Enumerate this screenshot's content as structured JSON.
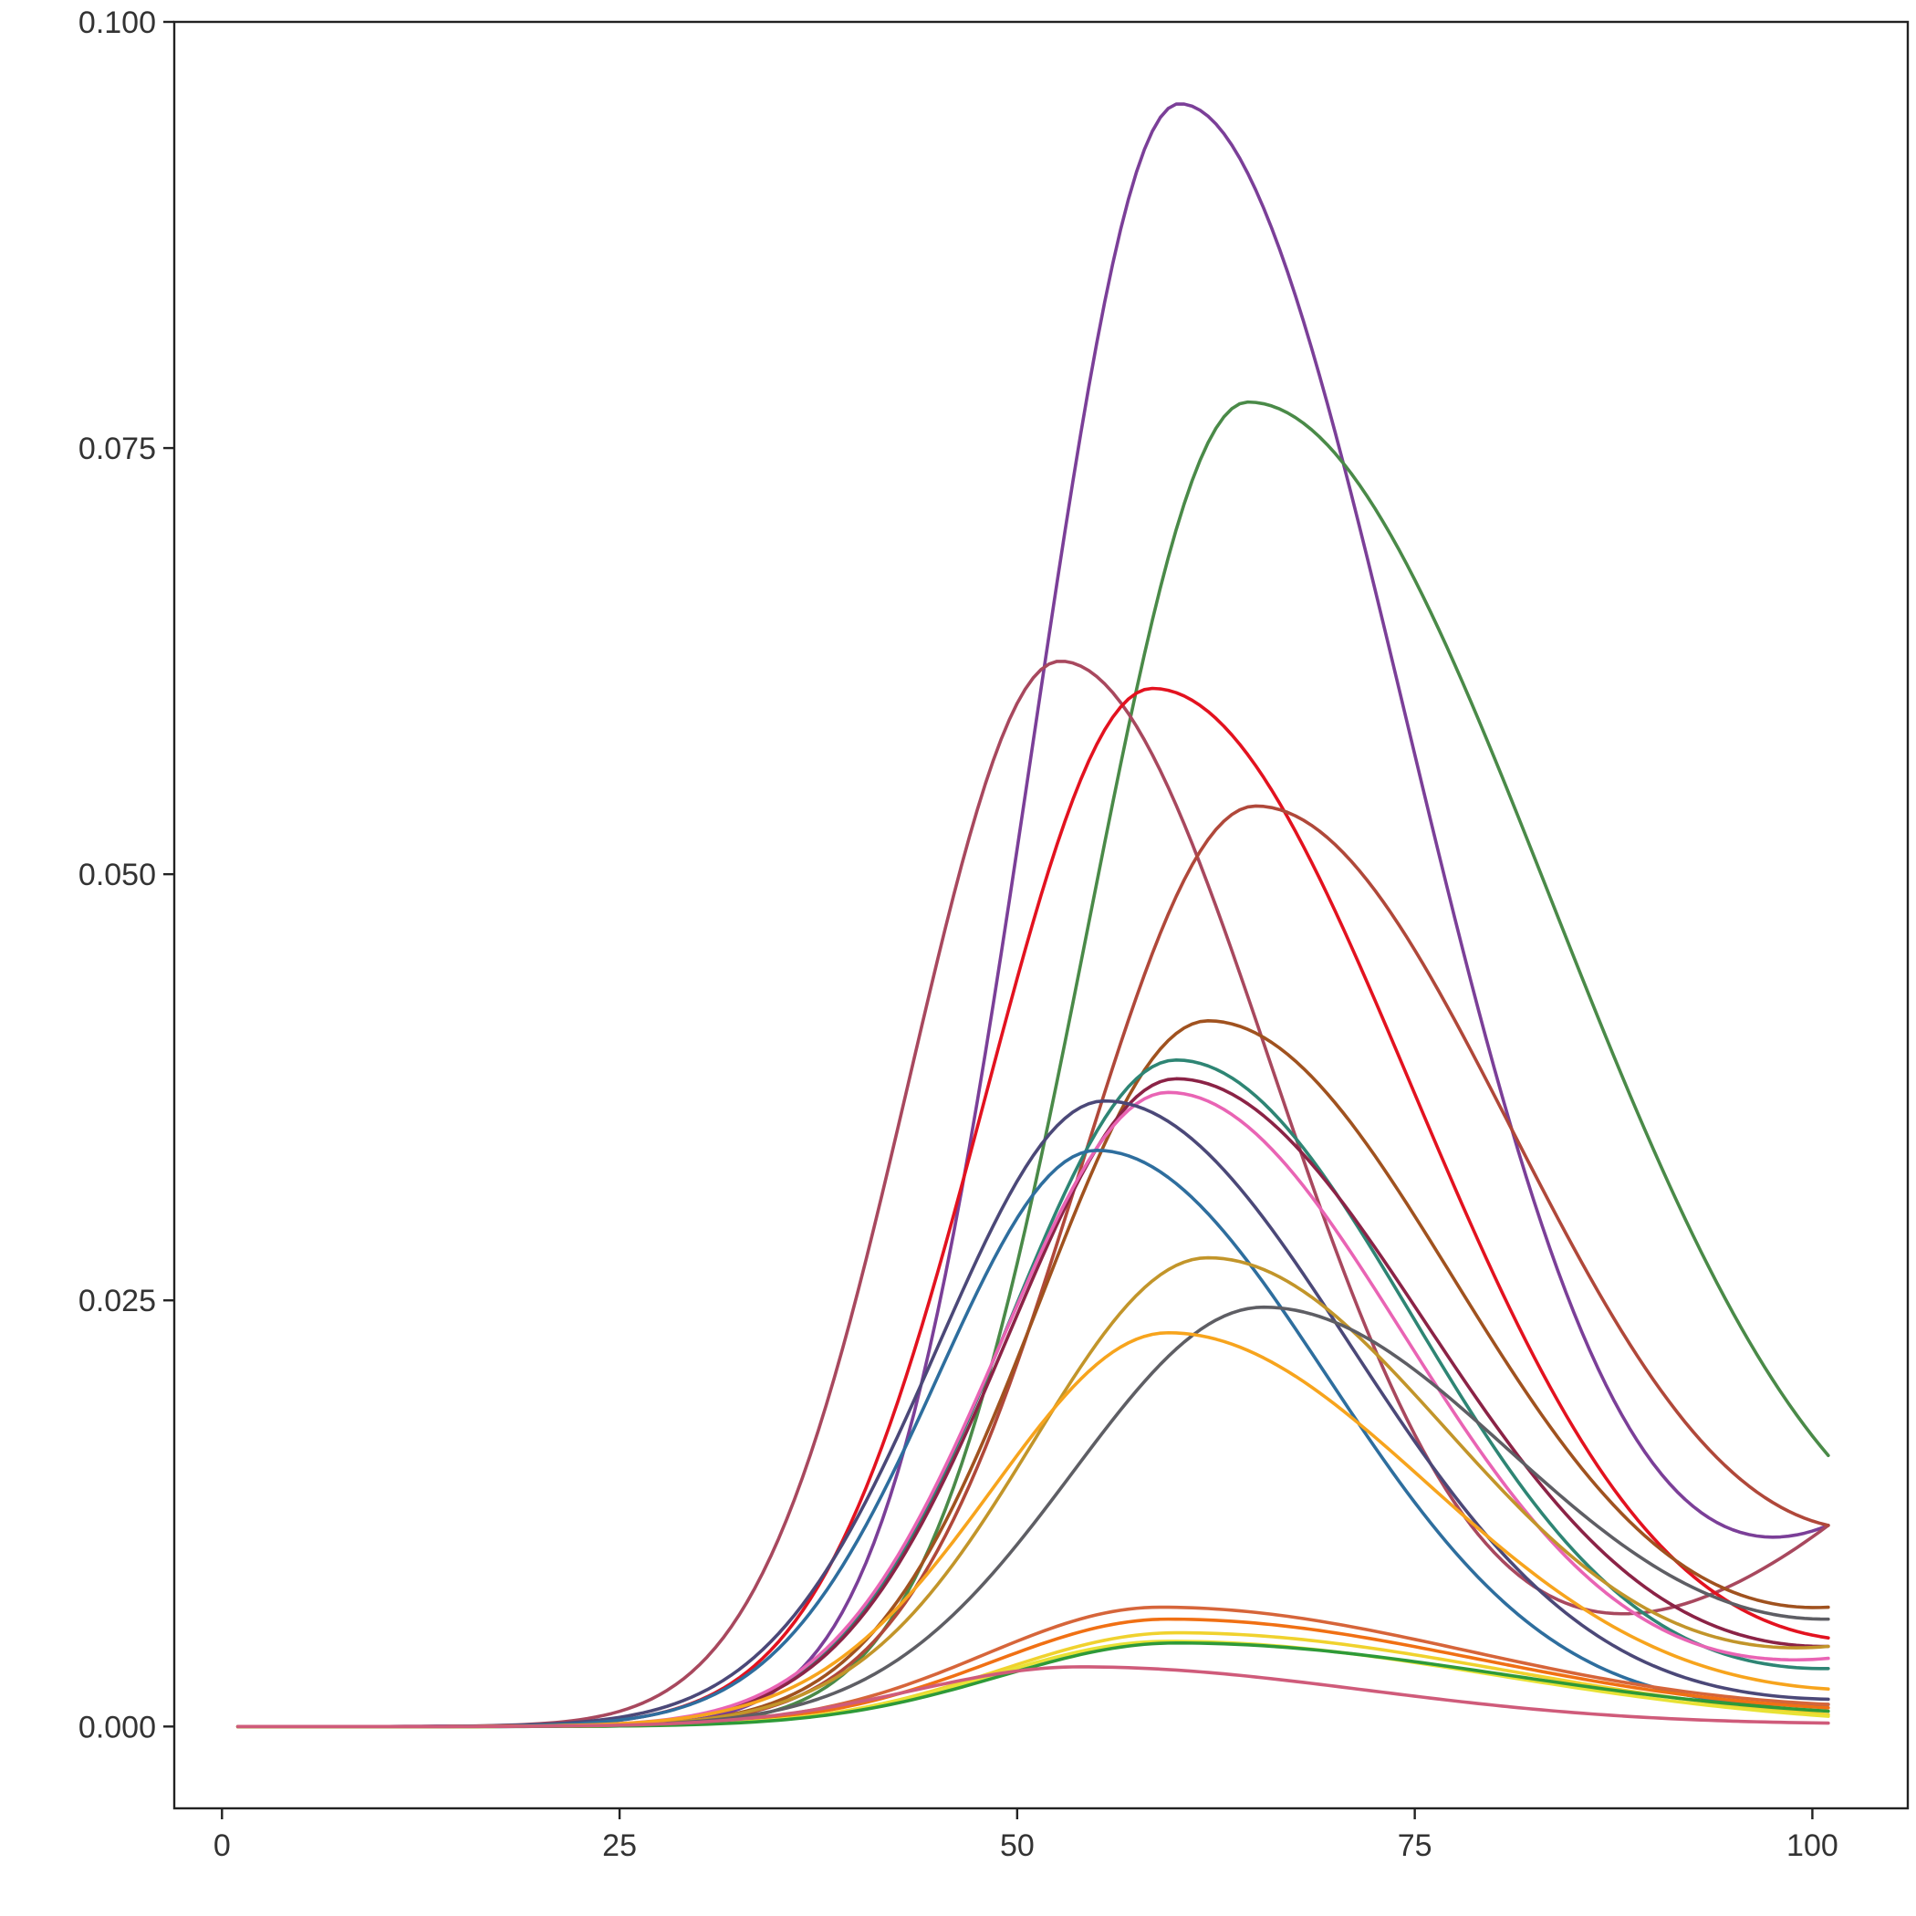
{
  "chart_data": {
    "type": "line",
    "title": "",
    "xlabel": "",
    "ylabel": "",
    "xlim": [
      -3,
      106
    ],
    "ylim": [
      -0.0048,
      0.1
    ],
    "x_ticks": [
      {
        "value": 0,
        "label": "0"
      },
      {
        "value": 25,
        "label": "25"
      },
      {
        "value": 50,
        "label": "50"
      },
      {
        "value": 75,
        "label": "75"
      },
      {
        "value": 100,
        "label": "100"
      }
    ],
    "y_ticks": [
      {
        "value": 0.0,
        "label": "0.000"
      },
      {
        "value": 0.025,
        "label": "0.025"
      },
      {
        "value": 0.05,
        "label": "0.050"
      },
      {
        "value": 0.075,
        "label": "0.075"
      },
      {
        "value": 0.1,
        "label": "0.100"
      }
    ],
    "grid": false,
    "legend": "none",
    "x_start": 1,
    "x_end": 101,
    "series": [
      {
        "color": "#7B3F98",
        "peak_x": 60.2,
        "peak_y": 0.0952,
        "sigma_left": 9.2,
        "sigma_right": 14.5,
        "end_y": 0.0118
      },
      {
        "color": "#4A8A48",
        "peak_x": 64.5,
        "peak_y": 0.0777,
        "sigma_left": 10.0,
        "sigma_right": 19.5,
        "end_y": 0.0159
      },
      {
        "color": "#A8485E",
        "peak_x": 52.7,
        "peak_y": 0.0625,
        "sigma_left": 9.5,
        "sigma_right": 13.5,
        "end_y": 0.0118
      },
      {
        "color": "#E3121F",
        "peak_x": 58.5,
        "peak_y": 0.0609,
        "sigma_left": 10.5,
        "sigma_right": 16.5,
        "end_y": 0.0052
      },
      {
        "color": "#B0483A",
        "peak_x": 65.0,
        "peak_y": 0.054,
        "sigma_left": 11.0,
        "sigma_right": 17.0,
        "end_y": 0.0118
      },
      {
        "color": "#A0521F",
        "peak_x": 62.0,
        "peak_y": 0.0414,
        "sigma_left": 10.5,
        "sigma_right": 16.0,
        "end_y": 0.007
      },
      {
        "color": "#2E8574",
        "peak_x": 60.0,
        "peak_y": 0.0391,
        "sigma_left": 10.5,
        "sigma_right": 15.0,
        "end_y": 0.0034
      },
      {
        "color": "#8B2346",
        "peak_x": 60.0,
        "peak_y": 0.038,
        "sigma_left": 10.5,
        "sigma_right": 16.0,
        "end_y": 0.0047
      },
      {
        "color": "#E964B4",
        "peak_x": 59.5,
        "peak_y": 0.0372,
        "sigma_left": 10.5,
        "sigma_right": 15.0,
        "end_y": 0.004
      },
      {
        "color": "#4B4878",
        "peak_x": 55.5,
        "peak_y": 0.0367,
        "sigma_left": 10.5,
        "sigma_right": 15.5,
        "end_y": 0.0016
      },
      {
        "color": "#2E6E9E",
        "peak_x": 55.0,
        "peak_y": 0.0338,
        "sigma_left": 10.0,
        "sigma_right": 14.5,
        "end_y": 0.0013
      },
      {
        "color": "#C2952A",
        "peak_x": 62.0,
        "peak_y": 0.0275,
        "sigma_left": 11.0,
        "sigma_right": 15.5,
        "end_y": 0.0047
      },
      {
        "color": "#5E5E64",
        "peak_x": 65.5,
        "peak_y": 0.0246,
        "sigma_left": 12.0,
        "sigma_right": 16.5,
        "end_y": 0.0063
      },
      {
        "color": "#F7A41D",
        "peak_x": 59.5,
        "peak_y": 0.0231,
        "sigma_left": 11.0,
        "sigma_right": 16.5,
        "end_y": 0.0022
      },
      {
        "color": "#D6653A",
        "peak_x": 59.0,
        "peak_y": 0.007,
        "sigma_left": 11.0,
        "sigma_right": 20.0,
        "end_y": 0.0013
      },
      {
        "color": "#F07014",
        "peak_x": 59.5,
        "peak_y": 0.0063,
        "sigma_left": 11.0,
        "sigma_right": 20.0,
        "end_y": 0.0011
      },
      {
        "color": "#F0D22E",
        "peak_x": 60.0,
        "peak_y": 0.0055,
        "sigma_left": 11.0,
        "sigma_right": 20.5,
        "end_y": 0.0007
      },
      {
        "color": "#E8E235",
        "peak_x": 59.5,
        "peak_y": 0.005,
        "sigma_left": 11.0,
        "sigma_right": 20.5,
        "end_y": 0.0006
      },
      {
        "color": "#2E9A38",
        "peak_x": 60.0,
        "peak_y": 0.0049,
        "sigma_left": 11.0,
        "sigma_right": 21.0,
        "end_y": 0.0009
      },
      {
        "color": "#CF5B7A",
        "peak_x": 54.0,
        "peak_y": 0.0035,
        "sigma_left": 10.5,
        "sigma_right": 18.0,
        "end_y": 0.0002
      }
    ]
  }
}
